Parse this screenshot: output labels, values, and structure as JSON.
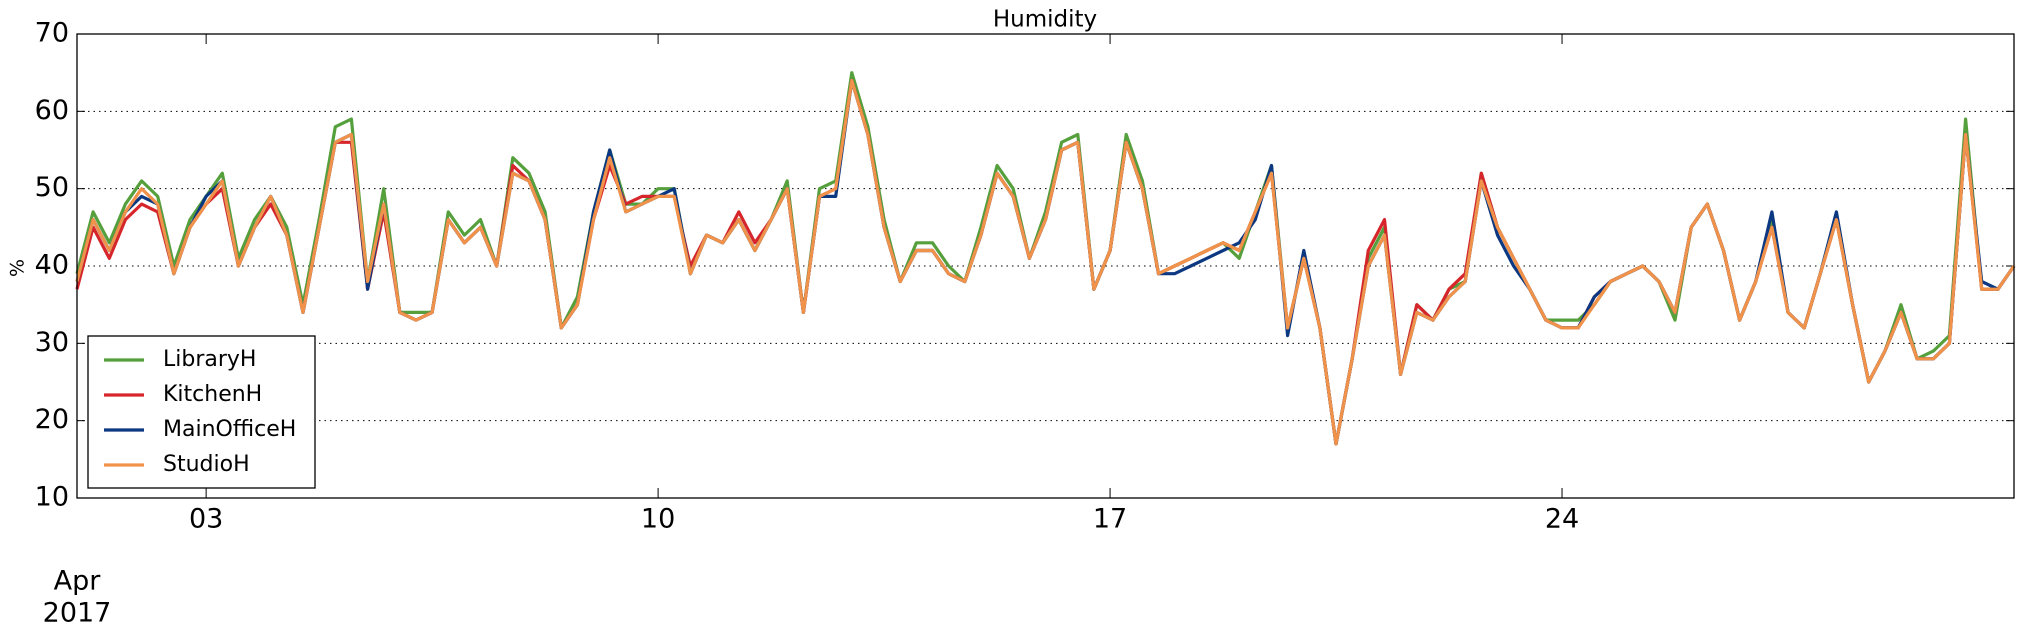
{
  "chart_data": {
    "type": "line",
    "title": "Humidity",
    "y_label": "%",
    "date_label": [
      "Apr",
      "2017"
    ],
    "x": [
      1,
      1.25,
      1.5,
      1.75,
      2,
      2.25,
      2.5,
      2.75,
      3,
      3.25,
      3.5,
      3.75,
      4,
      4.25,
      4.5,
      4.75,
      5,
      5.25,
      5.5,
      5.75,
      6,
      6.25,
      6.5,
      6.75,
      7,
      7.25,
      7.5,
      7.75,
      8,
      8.25,
      8.5,
      8.75,
      9,
      9.25,
      9.5,
      9.75,
      10,
      10.25,
      10.5,
      10.75,
      11,
      11.25,
      11.5,
      11.75,
      12,
      12.25,
      12.5,
      12.75,
      13,
      13.25,
      13.5,
      13.75,
      14,
      14.25,
      14.5,
      14.75,
      15,
      15.25,
      15.5,
      15.75,
      16,
      16.25,
      16.5,
      16.75,
      17,
      17.25,
      17.5,
      17.75,
      18,
      18.25,
      18.5,
      18.75,
      19,
      19.25,
      19.5,
      19.75,
      20,
      20.25,
      20.5,
      20.75,
      21,
      21.25,
      21.5,
      21.75,
      22,
      22.25,
      22.5,
      22.75,
      23,
      23.25,
      23.5,
      23.75,
      24,
      24.25,
      24.5,
      24.75,
      25,
      25.25,
      25.5,
      25.75,
      26,
      26.25,
      26.5,
      26.75,
      27,
      27.25,
      27.5,
      27.75,
      28,
      28.25,
      28.5,
      28.75,
      29,
      29.25,
      29.5,
      29.75,
      30,
      30.25,
      30.5,
      30.75,
      31
    ],
    "series": [
      {
        "name": "LibraryH",
        "color": "#55a03c",
        "values": [
          39,
          47,
          43,
          48,
          51,
          49,
          40,
          46,
          49,
          52,
          41,
          46,
          49,
          45,
          35,
          46,
          58,
          59,
          38,
          50,
          34,
          34,
          34,
          47,
          44,
          46,
          40,
          54,
          52,
          47,
          32,
          36,
          47,
          55,
          48,
          48,
          50,
          50,
          39,
          44,
          43,
          46,
          42,
          46,
          51,
          34,
          50,
          51,
          65,
          58,
          46,
          38,
          43,
          43,
          40,
          38,
          45,
          53,
          50,
          41,
          47,
          56,
          57,
          37,
          42,
          57,
          51,
          39,
          40,
          41,
          42,
          43,
          41,
          47,
          53,
          32,
          41,
          32,
          17,
          28,
          41,
          45,
          26,
          35,
          33,
          37,
          38,
          52,
          45,
          41,
          37,
          33,
          33,
          33,
          35,
          38,
          39,
          40,
          38,
          33,
          45,
          48,
          42,
          33,
          38,
          46,
          34,
          32,
          39,
          46,
          35,
          25,
          29,
          35,
          28,
          29,
          31,
          59,
          37,
          37,
          40
        ]
      },
      {
        "name": "KitchenH",
        "color": "#d7262b",
        "values": [
          37,
          45,
          41,
          46,
          48,
          47,
          39,
          45,
          48,
          50,
          40,
          45,
          48,
          44,
          34,
          45,
          56,
          56,
          37,
          47,
          34,
          33,
          34,
          46,
          43,
          45,
          40,
          53,
          51,
          46,
          32,
          35,
          46,
          53,
          48,
          49,
          49,
          49,
          40,
          44,
          43,
          47,
          43,
          46,
          50,
          34,
          49,
          50,
          64,
          57,
          45,
          38,
          42,
          42,
          39,
          38,
          44,
          52,
          49,
          41,
          46,
          55,
          56,
          37,
          42,
          56,
          50,
          39,
          40,
          41,
          42,
          43,
          42,
          47,
          52,
          32,
          41,
          32,
          17,
          28,
          42,
          46,
          26,
          35,
          33,
          37,
          39,
          52,
          45,
          41,
          37,
          33,
          32,
          32,
          36,
          38,
          39,
          40,
          38,
          34,
          45,
          48,
          42,
          33,
          38,
          45,
          34,
          32,
          39,
          46,
          35,
          25,
          29,
          34,
          28,
          28,
          30,
          57,
          37,
          37,
          40
        ]
      },
      {
        "name": "MainOfficeH",
        "color": "#0b3880",
        "values": [
          38,
          46,
          42,
          47,
          49,
          48,
          39,
          45,
          49,
          51,
          40,
          45,
          49,
          44,
          34,
          45,
          56,
          57,
          37,
          48,
          34,
          33,
          34,
          46,
          43,
          45,
          40,
          52,
          51,
          46,
          32,
          35,
          47,
          55,
          47,
          48,
          49,
          50,
          39,
          44,
          43,
          46,
          42,
          46,
          50,
          34,
          49,
          49,
          64,
          57,
          45,
          38,
          42,
          42,
          39,
          38,
          44,
          52,
          49,
          41,
          46,
          55,
          56,
          37,
          42,
          56,
          50,
          39,
          39,
          40,
          41,
          42,
          43,
          46,
          53,
          31,
          42,
          32,
          17,
          28,
          40,
          44,
          26,
          34,
          33,
          36,
          38,
          51,
          44,
          40,
          37,
          33,
          32,
          32,
          36,
          38,
          39,
          40,
          38,
          34,
          45,
          48,
          42,
          33,
          38,
          47,
          34,
          32,
          39,
          47,
          35,
          25,
          29,
          34,
          28,
          28,
          30,
          57,
          38,
          37,
          40
        ]
      },
      {
        "name": "StudioH",
        "color": "#f0924a",
        "values": [
          38,
          46,
          42,
          47,
          50,
          48,
          39,
          45,
          48,
          51,
          40,
          45,
          49,
          44,
          34,
          45,
          56,
          57,
          38,
          48,
          34,
          33,
          34,
          46,
          43,
          45,
          40,
          52,
          51,
          46,
          32,
          35,
          46,
          54,
          47,
          48,
          49,
          49,
          39,
          44,
          43,
          46,
          42,
          46,
          50,
          34,
          49,
          50,
          64,
          57,
          45,
          38,
          42,
          42,
          39,
          38,
          44,
          52,
          49,
          41,
          46,
          55,
          56,
          37,
          42,
          56,
          50,
          39,
          40,
          41,
          42,
          43,
          42,
          47,
          52,
          32,
          41,
          32,
          17,
          28,
          40,
          44,
          26,
          34,
          33,
          36,
          38,
          51,
          45,
          41,
          37,
          33,
          32,
          32,
          35,
          38,
          39,
          40,
          38,
          34,
          45,
          48,
          42,
          33,
          38,
          45,
          34,
          32,
          39,
          46,
          35,
          25,
          29,
          34,
          28,
          28,
          30,
          57,
          37,
          37,
          40
        ]
      }
    ],
    "xlim": [
      1,
      31
    ],
    "xticks": [
      {
        "value": 3,
        "label": "03"
      },
      {
        "value": 10,
        "label": "10"
      },
      {
        "value": 17,
        "label": "17"
      },
      {
        "value": 24,
        "label": "24"
      }
    ],
    "ylim": [
      10,
      70
    ],
    "yticks": [
      10,
      20,
      30,
      40,
      50,
      60,
      70
    ],
    "grid": true,
    "legend": "lower left"
  }
}
